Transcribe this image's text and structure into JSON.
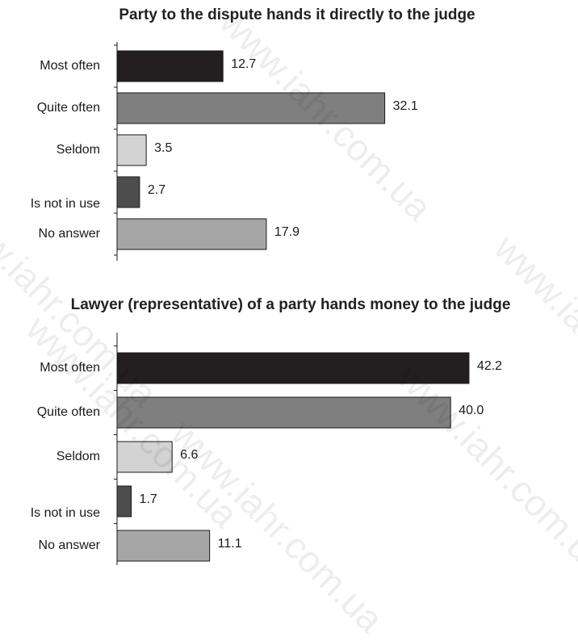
{
  "watermark": "www.iahr.com.ua",
  "chart_data": [
    {
      "type": "bar",
      "orientation": "horizontal",
      "title": "Party to the dispute hands it directly to the judge",
      "categories": [
        "Most often",
        "Quite often",
        "Seldom",
        "Is not in use",
        "No answer"
      ],
      "values": [
        12.7,
        32.1,
        3.5,
        2.7,
        17.9
      ],
      "value_labels": [
        "12.7",
        "32.1",
        "3.5",
        "2.7",
        "17.9"
      ],
      "colors": [
        "#231f20",
        "#7f7f7f",
        "#d3d3d3",
        "#4d4d4d",
        "#a6a6a6"
      ],
      "xlim": [
        0,
        45
      ],
      "grid": false,
      "legend": "none"
    },
    {
      "type": "bar",
      "orientation": "horizontal",
      "title": "Lawyer (representative) of a party hands money to the judge",
      "categories": [
        "Most often",
        "Quite often",
        "Seldom",
        "Is not in use",
        "No answer"
      ],
      "values": [
        42.2,
        40.0,
        6.6,
        1.7,
        11.1
      ],
      "value_labels": [
        "42.2",
        "40.0",
        "6.6",
        "1.7",
        "11.1"
      ],
      "colors": [
        "#231f20",
        "#7f7f7f",
        "#d3d3d3",
        "#4d4d4d",
        "#a6a6a6"
      ],
      "xlim": [
        0,
        45
      ],
      "grid": false,
      "legend": "none"
    }
  ]
}
